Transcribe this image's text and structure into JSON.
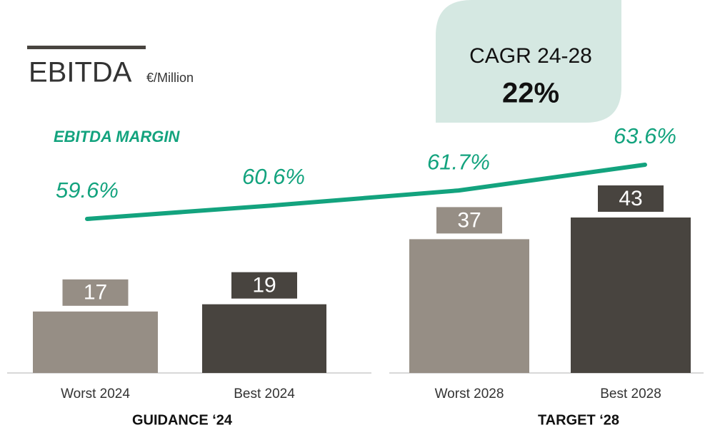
{
  "chart_data": {
    "type": "bar",
    "title": "EBITDA",
    "subtitle": "€/Million",
    "categories": [
      "Worst 2024",
      "Best 2024",
      "Worst 2028",
      "Best 2028"
    ],
    "values": [
      17,
      19,
      37,
      43
    ],
    "colors": [
      "#968e85",
      "#48443f",
      "#968e85",
      "#48443f"
    ],
    "groups": [
      "GUIDANCE ‘24",
      "TARGET ‘28"
    ],
    "line": {
      "title": "EBITDA MARGIN",
      "color": "#13a37e",
      "values": [
        59.6,
        60.6,
        61.7,
        63.6
      ],
      "value_labels": [
        "59.6%",
        "60.6%",
        "61.7%",
        "63.6%"
      ]
    },
    "cagr": {
      "label": "CAGR 24-28",
      "value": 22,
      "value_label": "22%"
    }
  }
}
